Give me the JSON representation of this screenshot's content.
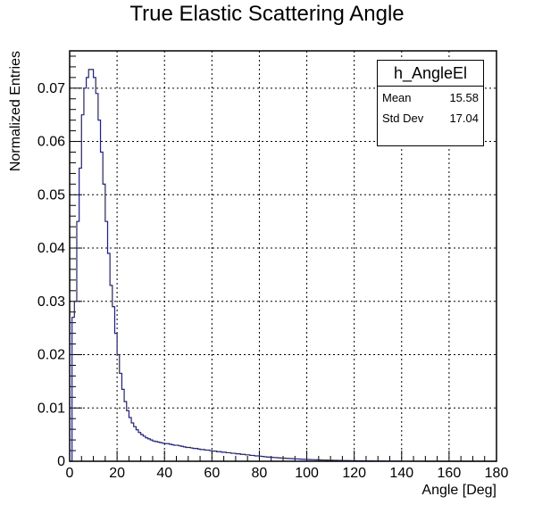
{
  "chart_data": {
    "type": "histogram",
    "title": "True Elastic Scattering Angle",
    "xlabel": "Angle [Deg]",
    "ylabel": "Normalized Entries",
    "xlim": [
      0,
      180
    ],
    "ylim": [
      0,
      0.077
    ],
    "grid": true,
    "x_ticks": [
      "0",
      "20",
      "40",
      "60",
      "80",
      "100",
      "120",
      "140",
      "160",
      "180"
    ],
    "y_ticks": [
      "0",
      "0.01",
      "0.02",
      "0.03",
      "0.04",
      "0.05",
      "0.06",
      "0.07"
    ],
    "bin_width": 1,
    "series": [
      {
        "color": "#1f1f8f",
        "values": [
          0.0,
          0.027,
          0.03,
          0.045,
          0.055,
          0.065,
          0.07,
          0.072,
          0.0735,
          0.0735,
          0.072,
          0.069,
          0.064,
          0.058,
          0.052,
          0.045,
          0.039,
          0.033,
          0.029,
          0.024,
          0.02,
          0.0165,
          0.0135,
          0.0112,
          0.0095,
          0.0082,
          0.0072,
          0.0065,
          0.0059,
          0.0054,
          0.005,
          0.0047,
          0.0044,
          0.0042,
          0.004,
          0.0038,
          0.0037,
          0.0036,
          0.0035,
          0.0034,
          0.0033,
          0.0033,
          0.0032,
          0.0031,
          0.003,
          0.003,
          0.0029,
          0.0028,
          0.0027,
          0.0026,
          0.0026,
          0.0025,
          0.0024,
          0.0024,
          0.0023,
          0.0022,
          0.0022,
          0.0021,
          0.0021,
          0.002,
          0.0019,
          0.0019,
          0.0018,
          0.0018,
          0.0017,
          0.0017,
          0.0016,
          0.0016,
          0.0015,
          0.0015,
          0.0014,
          0.0014,
          0.0013,
          0.0013,
          0.0012,
          0.0012,
          0.0011,
          0.0011,
          0.001,
          0.001,
          0.00095,
          0.0009,
          0.00085,
          0.0008,
          0.00078,
          0.00074,
          0.0007,
          0.00067,
          0.00063,
          0.0006,
          0.00058,
          0.00055,
          0.00052,
          0.0005,
          0.00047,
          0.00045,
          0.00043,
          0.0004,
          0.00038,
          0.00036,
          0.00034,
          0.00032,
          0.0003,
          0.00028,
          0.00027,
          0.00025,
          0.00024,
          0.00022,
          0.00021,
          0.0002,
          0.00019,
          0.00018,
          0.00017,
          0.00016,
          0.00015,
          0.00014,
          0.00013,
          0.00012,
          0.00011,
          0.0001,
          0.0001,
          9e-05,
          8e-05,
          8e-05,
          7e-05,
          7e-05,
          6e-05,
          6e-05,
          5e-05,
          5e-05,
          4e-05,
          4e-05,
          4e-05,
          3e-05,
          3e-05,
          3e-05,
          2e-05,
          2e-05,
          2e-05,
          2e-05,
          1e-05,
          1e-05,
          1e-05,
          1e-05,
          1e-05,
          1e-05,
          1e-05,
          1e-05,
          1e-05,
          1e-05,
          0.0,
          0.0,
          0.0,
          0.0,
          0.0,
          0.0,
          0.0,
          0.0,
          0.0,
          0.0,
          0.0,
          0.0,
          0.0,
          0.0,
          0.0,
          0.0,
          0.0,
          0.0,
          0.0,
          0.0,
          0.0,
          0.0,
          0.0,
          0.0,
          0.0,
          0.0,
          0.0,
          0.0,
          0.0,
          0.0
        ]
      }
    ],
    "stats_box": {
      "name": "h_AngleEl",
      "rows": [
        {
          "label": "Mean",
          "value": "15.58"
        },
        {
          "label": "Std Dev",
          "value": "17.04"
        }
      ]
    }
  }
}
